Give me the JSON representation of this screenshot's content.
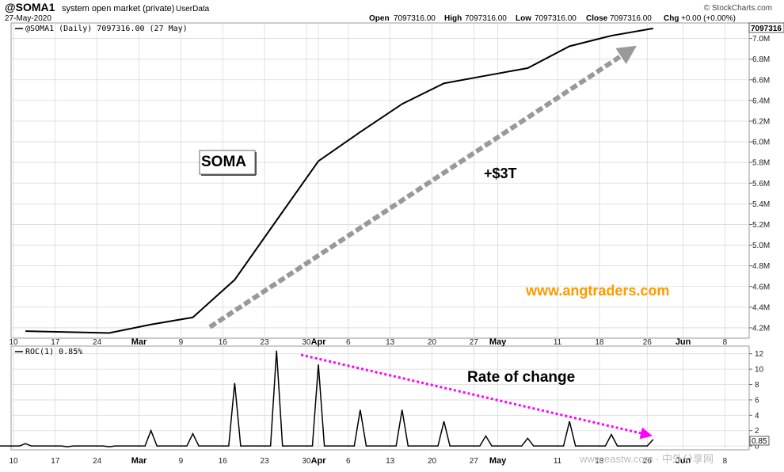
{
  "header": {
    "symbol": "@SOMA1",
    "description": "system open market (private)",
    "userdata": "UserData",
    "date": "27-May-2020",
    "watermark": "© StockCharts.com",
    "quote": {
      "open_label": "Open",
      "open_value": "7097316.00",
      "high_label": "High",
      "high_value": "7097316.00",
      "low_label": "Low",
      "low_value": "7097316.00",
      "close_label": "Close",
      "close_value": "7097316.00",
      "chg_label": "Chg",
      "chg_value": "+0.00 (+0.00%)"
    }
  },
  "annotations": {
    "soma_box": "SOMA",
    "delta_label": "+$3T",
    "site": "www.angtraders.com",
    "rate_label": "Rate of change",
    "bottom_watermark": "www.eastw.com  · 中外分享网"
  },
  "colors": {
    "price_line": "#000000",
    "gray_arrow": "#999999",
    "magenta_arrow": "#ff00ff",
    "site_text": "#ff9900",
    "grid": "#d9d9d9"
  },
  "chart_data": [
    {
      "type": "line",
      "legend": "@SOMA1 (Daily) 7097316.00 (27 May)",
      "last_value_label": "7097316",
      "x": [
        "2020-02-12",
        "2020-02-26",
        "2020-03-04",
        "2020-03-11",
        "2020-03-18",
        "2020-03-25",
        "2020-04-01",
        "2020-04-08",
        "2020-04-15",
        "2020-04-22",
        "2020-04-29",
        "2020-05-06",
        "2020-05-13",
        "2020-05-20",
        "2020-05-27"
      ],
      "values": [
        4168000,
        4150000,
        4232000,
        4301000,
        4665000,
        5240000,
        5813000,
        6095000,
        6366000,
        6566000,
        6640000,
        6713000,
        6925000,
        7027000,
        7097316
      ],
      "ylim": [
        4100000,
        7150000
      ],
      "y_ticks": [
        "4.2M",
        "4.4M",
        "4.6M",
        "4.8M",
        "5.0M",
        "5.2M",
        "5.4M",
        "5.6M",
        "5.8M",
        "6.0M",
        "6.2M",
        "6.4M",
        "6.6M",
        "6.8M",
        "7.0M"
      ],
      "y_tick_values": [
        4200000,
        4400000,
        4600000,
        4800000,
        5000000,
        5200000,
        5400000,
        5600000,
        5800000,
        6000000,
        6200000,
        6400000,
        6600000,
        6800000,
        7000000
      ],
      "x_ticks": [
        {
          "label": "10",
          "bold": false
        },
        {
          "label": "17",
          "bold": false
        },
        {
          "label": "24",
          "bold": false
        },
        {
          "label": "Mar",
          "bold": true
        },
        {
          "label": "9",
          "bold": false
        },
        {
          "label": "16",
          "bold": false
        },
        {
          "label": "23",
          "bold": false
        },
        {
          "label": "30",
          "bold": false
        },
        {
          "label": "Apr",
          "bold": true
        },
        {
          "label": "6",
          "bold": false
        },
        {
          "label": "13",
          "bold": false
        },
        {
          "label": "20",
          "bold": false
        },
        {
          "label": "27",
          "bold": false
        },
        {
          "label": "May",
          "bold": true
        },
        {
          "label": "11",
          "bold": false
        },
        {
          "label": "18",
          "bold": false
        },
        {
          "label": "26",
          "bold": false
        },
        {
          "label": "Jun",
          "bold": true
        },
        {
          "label": "8",
          "bold": false
        }
      ],
      "x_tick_dates": [
        "2020-02-10",
        "2020-02-17",
        "2020-02-24",
        "2020-03-02",
        "2020-03-09",
        "2020-03-16",
        "2020-03-23",
        "2020-03-30",
        "2020-04-01",
        "2020-04-06",
        "2020-04-13",
        "2020-04-20",
        "2020-04-27",
        "2020-05-01",
        "2020-05-11",
        "2020-05-18",
        "2020-05-26",
        "2020-06-01",
        "2020-06-08"
      ]
    },
    {
      "type": "line",
      "legend": "ROC(1) 0.85%",
      "last_value_label": "0.85",
      "weekly_roc": [
        {
          "date": "2020-02-12",
          "value": 0.3
        },
        {
          "date": "2020-02-19",
          "value": -0.1
        },
        {
          "date": "2020-02-26",
          "value": -0.1
        },
        {
          "date": "2020-03-04",
          "value": 2.0
        },
        {
          "date": "2020-03-11",
          "value": 1.6
        },
        {
          "date": "2020-03-18",
          "value": 8.2
        },
        {
          "date": "2020-03-25",
          "value": 12.4
        },
        {
          "date": "2020-04-01",
          "value": 10.6
        },
        {
          "date": "2020-04-08",
          "value": 4.7
        },
        {
          "date": "2020-04-15",
          "value": 4.7
        },
        {
          "date": "2020-04-22",
          "value": 3.2
        },
        {
          "date": "2020-04-29",
          "value": 1.3
        },
        {
          "date": "2020-05-06",
          "value": 1.0
        },
        {
          "date": "2020-05-13",
          "value": 3.2
        },
        {
          "date": "2020-05-20",
          "value": 1.5
        },
        {
          "date": "2020-05-27",
          "value": 0.85
        }
      ],
      "ylim": [
        -0.5,
        13
      ],
      "y_ticks": [
        "0",
        "2",
        "4",
        "6",
        "8",
        "10",
        "12"
      ],
      "y_tick_values": [
        0,
        2,
        4,
        6,
        8,
        10,
        12
      ],
      "x_ticks": [
        {
          "label": "10",
          "bold": false
        },
        {
          "label": "17",
          "bold": false
        },
        {
          "label": "24",
          "bold": false
        },
        {
          "label": "Mar",
          "bold": true
        },
        {
          "label": "9",
          "bold": false
        },
        {
          "label": "16",
          "bold": false
        },
        {
          "label": "23",
          "bold": false
        },
        {
          "label": "30",
          "bold": false
        },
        {
          "label": "Apr",
          "bold": true
        },
        {
          "label": "6",
          "bold": false
        },
        {
          "label": "13",
          "bold": false
        },
        {
          "label": "20",
          "bold": false
        },
        {
          "label": "27",
          "bold": false
        },
        {
          "label": "May",
          "bold": true
        },
        {
          "label": "11",
          "bold": false
        },
        {
          "label": "18",
          "bold": false
        },
        {
          "label": "26",
          "bold": false
        },
        {
          "label": "Jun",
          "bold": true
        },
        {
          "label": "8",
          "bold": false
        }
      ]
    }
  ]
}
